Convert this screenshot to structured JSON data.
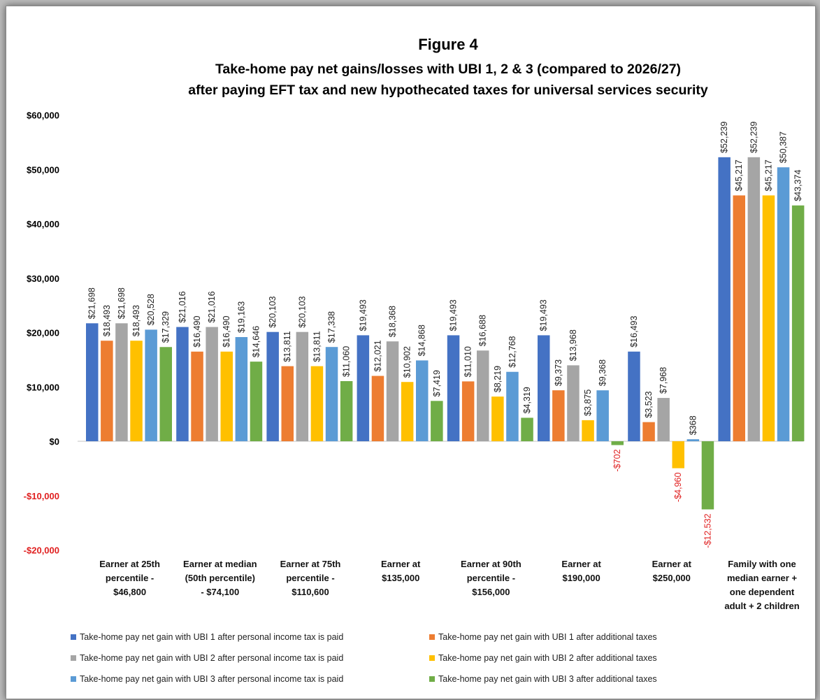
{
  "chart_data": {
    "type": "bar",
    "title": "Figure 4",
    "subtitle_lines": [
      "Take-home pay net gains/losses with UBI 1, 2 & 3 (compared to 2026/27)",
      "after paying EFT tax and new hypothecated taxes for universal services security"
    ],
    "xlabel": "",
    "ylabel": "",
    "ylim": [
      -20000,
      60000
    ],
    "yticks": [
      60000,
      50000,
      40000,
      30000,
      20000,
      10000,
      0,
      -10000,
      -20000
    ],
    "ytick_labels": [
      "$60,000",
      "$50,000",
      "$40,000",
      "$30,000",
      "$20,000",
      "$10,000",
      "$0",
      "-$10,000",
      "-$20,000"
    ],
    "grid": false,
    "legend_position": "bottom",
    "categories": [
      [
        "Earner at 25th",
        "percentile -",
        "$46,800"
      ],
      [
        "Earner at median",
        "(50th percentile)",
        "- $74,100"
      ],
      [
        "Earner at 75th",
        "percentile -",
        "$110,600"
      ],
      [
        "Earner at",
        "$135,000"
      ],
      [
        "Earner at 90th",
        "percentile -",
        "$156,000"
      ],
      [
        "Earner at",
        "$190,000"
      ],
      [
        "Earner at",
        "$250,000"
      ],
      [
        "Family with one",
        "median earner +",
        "one dependent",
        "adult + 2 children"
      ]
    ],
    "series": [
      {
        "name": "Take-home pay net gain with UBI 1 after personal income tax is paid",
        "color": "#4472c4",
        "values": [
          21698,
          21016,
          20103,
          19493,
          19493,
          19493,
          16493,
          52239
        ],
        "labels": [
          "$21,698",
          "$21,016",
          "$20,103",
          "$19,493",
          "$19,493",
          "$19,493",
          "$16,493",
          "$52,239"
        ]
      },
      {
        "name": "Take-home pay net gain with UBI 1 after additional taxes",
        "color": "#ed7d31",
        "values": [
          18493,
          16490,
          13811,
          12021,
          11010,
          9373,
          3523,
          45217
        ],
        "labels": [
          "$18,493",
          "$16,490",
          "$13,811",
          "$12,021",
          "$11,010",
          "$9,373",
          "$3,523",
          "$45,217"
        ]
      },
      {
        "name": "Take-home pay net gain with UBI 2 after personal income tax is paid",
        "color": "#a5a5a5",
        "values": [
          21698,
          21016,
          20103,
          18368,
          16688,
          13968,
          7968,
          52239
        ],
        "labels": [
          "$21,698",
          "$21,016",
          "$20,103",
          "$18,368",
          "$16,688",
          "$13,968",
          "$7,968",
          "$52,239"
        ]
      },
      {
        "name": "Take-home pay net gain with UBI 2 after additional taxes",
        "color": "#ffc000",
        "values": [
          18493,
          16490,
          13811,
          10902,
          8219,
          3875,
          -4960,
          45217
        ],
        "labels": [
          "$18,493",
          "$16,490",
          "$13,811",
          "$10,902",
          "$8,219",
          "$3,875",
          "-$4,960",
          "$45,217"
        ]
      },
      {
        "name": "Take-home pay net gain with UBI 3 after personal income tax is paid",
        "color": "#5b9bd5",
        "values": [
          20528,
          19163,
          17338,
          14868,
          12768,
          9368,
          368,
          50387
        ],
        "labels": [
          "$20,528",
          "$19,163",
          "$17,338",
          "$14,868",
          "$12,768",
          "$9,368",
          "$368",
          "$50,387"
        ]
      },
      {
        "name": "Take-home pay net gain with UBI 3 after additional taxes",
        "color": "#70ad47",
        "values": [
          17329,
          14646,
          11060,
          7419,
          4319,
          -702,
          -12532,
          43374
        ],
        "labels": [
          "$17,329",
          "$14,646",
          "$11,060",
          "$7,419",
          "$4,319",
          "-$702",
          "-$12,532",
          "$43,374"
        ]
      }
    ],
    "positive_tick_color": "#000000",
    "negative_color": "#e02020"
  }
}
